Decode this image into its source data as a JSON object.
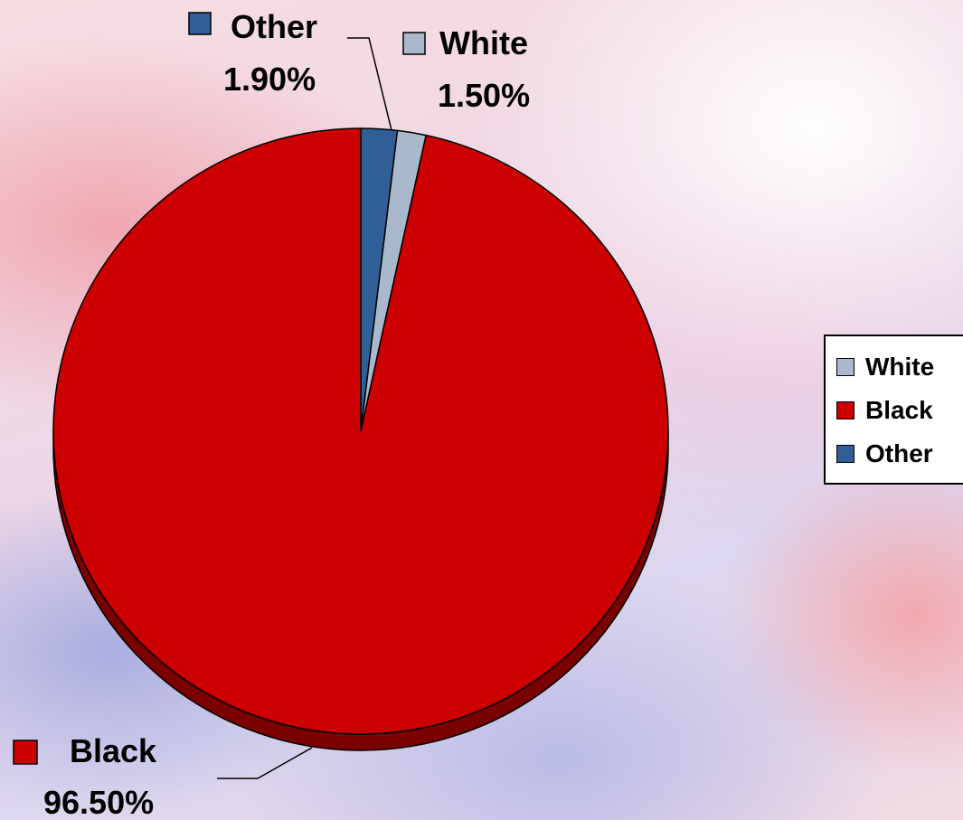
{
  "chart_data": {
    "type": "pie",
    "categories": [
      "White",
      "Black",
      "Other"
    ],
    "values": [
      1.5,
      96.5,
      1.9
    ],
    "data_labels": [
      {
        "name": "Other",
        "value": "1.90%"
      },
      {
        "name": "White",
        "value": "1.50%"
      },
      {
        "name": "Black",
        "value": "96.50%"
      }
    ],
    "colors": {
      "White": "#a9b8cb",
      "Black": "#cc0000",
      "Other": "#2f5f96"
    },
    "legend": {
      "position": "right",
      "entries": [
        "White",
        "Black",
        "Other"
      ]
    }
  }
}
